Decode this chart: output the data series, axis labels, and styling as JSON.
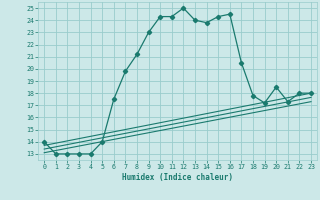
{
  "title": "",
  "xlabel": "Humidex (Indice chaleur)",
  "main_x": [
    0,
    1,
    2,
    3,
    4,
    5,
    6,
    7,
    8,
    9,
    10,
    11,
    12,
    13,
    14,
    15,
    16,
    17,
    18,
    19,
    20,
    21,
    22,
    23
  ],
  "main_y": [
    14,
    13,
    13,
    13,
    13,
    14,
    17.5,
    19.8,
    21.2,
    23,
    24.3,
    24.3,
    25,
    24,
    23.8,
    24.3,
    24.5,
    20.5,
    17.8,
    17.2,
    18.5,
    17.3,
    18,
    18
  ],
  "line1_x": [
    0,
    23
  ],
  "line1_y": [
    13.1,
    17.3
  ],
  "line2_x": [
    0,
    23
  ],
  "line2_y": [
    13.4,
    17.65
  ],
  "line3_x": [
    0,
    23
  ],
  "line3_y": [
    13.7,
    18.0
  ],
  "color": "#1a7a6e",
  "bg_color": "#cce8e8",
  "grid_color": "#99cccc",
  "ylim": [
    12.5,
    25.5
  ],
  "xlim": [
    -0.5,
    23.5
  ],
  "yticks": [
    13,
    14,
    15,
    16,
    17,
    18,
    19,
    20,
    21,
    22,
    23,
    24,
    25
  ],
  "xticks": [
    0,
    1,
    2,
    3,
    4,
    5,
    6,
    7,
    8,
    9,
    10,
    11,
    12,
    13,
    14,
    15,
    16,
    17,
    18,
    19,
    20,
    21,
    22,
    23
  ]
}
